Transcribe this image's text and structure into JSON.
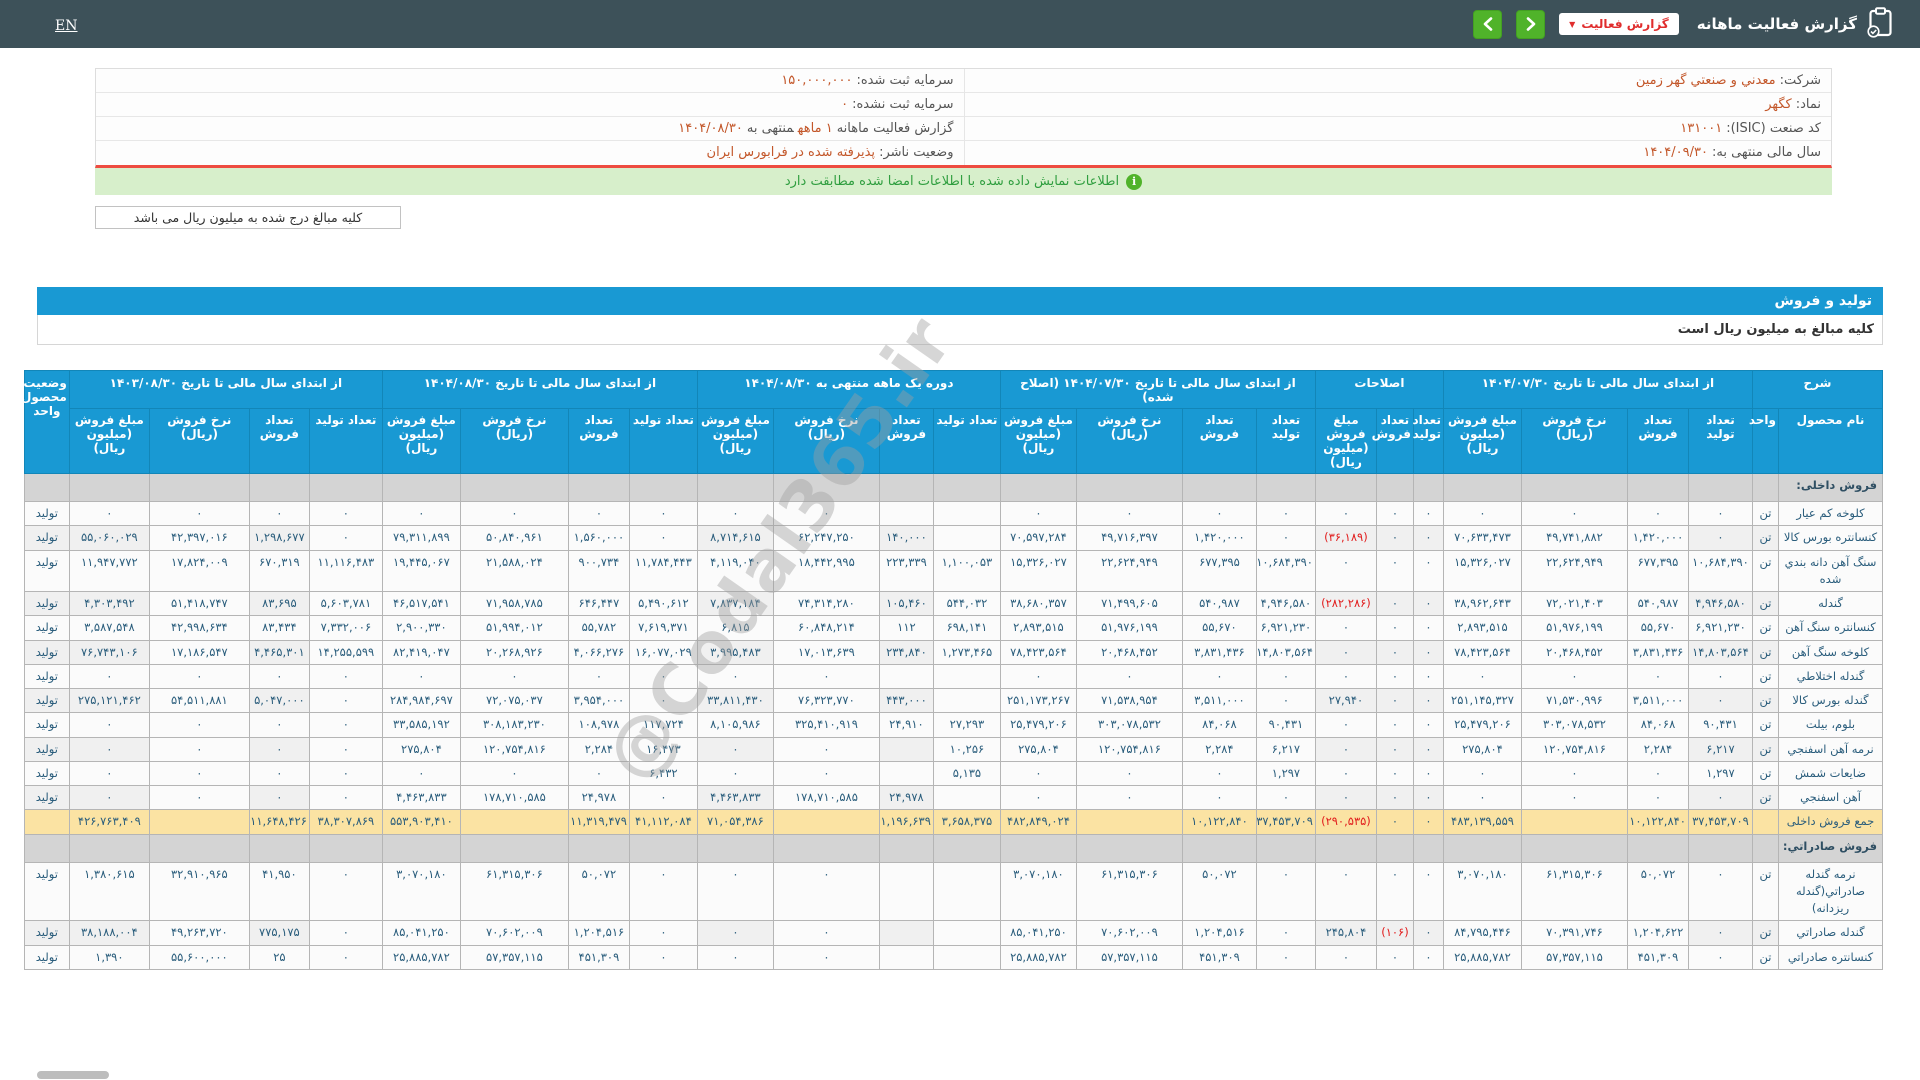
{
  "topbar": {
    "en_label": "EN",
    "title": "گزارش فعالیت ماهانه",
    "report_button": "گزارش فعالیت",
    "accent_green": "#50b32a",
    "accent_red": "#e02d2d",
    "bar_color": "#3d5159"
  },
  "company_info": {
    "right_rows": [
      {
        "label": "شرکت:",
        "value": "معدني و صنعتي گهر زمين"
      },
      {
        "label": "نماد:",
        "value": "کگهر"
      },
      {
        "label": "کد صنعت (ISIC):",
        "value": "۱۳۱۰۰۱"
      },
      {
        "label": "سال مالی منتهی به:",
        "value": "۱۴۰۴/۰۹/۳۰"
      }
    ],
    "left_rows": [
      {
        "label": "سرمایه ثبت شده:",
        "value": "۱۵۰,۰۰۰,۰۰۰"
      },
      {
        "label": "سرمایه ثبت نشده:",
        "value": "۰"
      },
      {
        "label": "گزارش فعالیت ماهانه",
        "value": "۱ ماهه",
        "suffix": "منتهی به",
        "value2": "۱۴۰۴/۰۸/۳۰"
      },
      {
        "label": "وضعیت ناشر:",
        "value": "پذیرفته شده در فرابورس ایران"
      }
    ]
  },
  "signed_notice": "اطلاعات نمایش داده شده با اطلاعات امضا شده مطابقت دارد",
  "unit_note": "کلیه مبالغ درج شده به میلیون ریال می باشد",
  "section": {
    "title": "تولید و فروش",
    "subtitle": "کلیه مبالغ به میلیون ریال است",
    "bar_color": "#1999d3"
  },
  "table": {
    "groups": [
      {
        "label": "شرح",
        "cols": [
          "نام محصول",
          "واحد"
        ]
      },
      {
        "label": "از ابتدای سال مالی تا تاریخ ۱۴۰۴/۰۷/۳۰",
        "cols": [
          "تعداد تولید",
          "تعداد فروش",
          "نرخ فروش (ریال)",
          "مبلغ فروش (میلیون ریال)"
        ]
      },
      {
        "label": "اصلاحات",
        "cols": [
          "تعداد تولید",
          "تعداد فروش",
          "مبلغ فروش (میلیون ریال)"
        ]
      },
      {
        "label": "از ابتدای سال مالی تا تاریخ ۱۴۰۴/۰۷/۳۰ (اصلاح شده)",
        "cols": [
          "تعداد تولید",
          "تعداد فروش",
          "نرخ فروش (ریال)",
          "مبلغ فروش (میلیون ریال)"
        ]
      },
      {
        "label": "دوره یک ماهه منتهی به ۱۴۰۴/۰۸/۳۰",
        "cols": [
          "تعداد تولید",
          "تعداد فروش",
          "نرخ فروش (ریال)",
          "مبلغ فروش (میلیون ریال)"
        ]
      },
      {
        "label": "از ابتدای سال مالی تا تاریخ ۱۴۰۴/۰۸/۳۰",
        "cols": [
          "تعداد تولید",
          "تعداد فروش",
          "نرخ فروش (ریال)",
          "مبلغ فروش (میلیون ریال)"
        ]
      },
      {
        "label": "از ابتدای سال مالی تا تاریخ ۱۴۰۳/۰۸/۳۰",
        "cols": [
          "تعداد تولید",
          "تعداد فروش",
          "نرخ فروش (ریال)",
          "مبلغ فروش (میلیون ریال)"
        ]
      },
      {
        "label": "وضعیت محصول- واحد",
        "cols": []
      }
    ],
    "rows": [
      {
        "type": "section",
        "name": "فروش داخلی:"
      },
      {
        "type": "data",
        "name": "کلوخه کم عیار",
        "unit": "تن",
        "status": "تولید",
        "cells": [
          "۰",
          "۰",
          "۰",
          "۰",
          "۰",
          "۰",
          "۰",
          "۰",
          "۰",
          "۰",
          "۰",
          "",
          "",
          "۰",
          "۰",
          "۰",
          "۰",
          "۰",
          "۰",
          "۰",
          "۰",
          "۰",
          "۰"
        ]
      },
      {
        "type": "data",
        "name": "کنسانتره بورس کالا",
        "unit": "تن",
        "status": "تولید",
        "cells": [
          "۰",
          "۱,۴۲۰,۰۰۰",
          "۴۹,۷۴۱,۸۸۲",
          "۷۰,۶۳۳,۴۷۳",
          "۰",
          "۰",
          "(۳۶,۱۸۹)",
          "۰",
          "۱,۴۲۰,۰۰۰",
          "۴۹,۷۱۶,۳۹۷",
          "۷۰,۵۹۷,۲۸۴",
          "",
          "۱۴۰,۰۰۰",
          "۶۲,۲۴۷,۲۵۰",
          "۸,۷۱۴,۶۱۵",
          "۰",
          "۱,۵۶۰,۰۰۰",
          "۵۰,۸۴۰,۹۶۱",
          "۷۹,۳۱۱,۸۹۹",
          "۰",
          "۱,۲۹۸,۶۷۷",
          "۴۲,۳۹۷,۰۱۶",
          "۵۵,۰۶۰,۰۲۹"
        ]
      },
      {
        "type": "data",
        "name": "سنگ آهن دانه بندي شده",
        "unit": "تن",
        "status": "تولید",
        "cells": [
          "۱۰,۶۸۴,۳۹۰",
          "۶۷۷,۳۹۵",
          "۲۲,۶۲۴,۹۴۹",
          "۱۵,۳۲۶,۰۲۷",
          "۰",
          "۰",
          "۰",
          "۱۰,۶۸۴,۳۹۰",
          "۶۷۷,۳۹۵",
          "۲۲,۶۲۴,۹۴۹",
          "۱۵,۳۲۶,۰۲۷",
          "۱,۱۰۰,۰۵۳",
          "۲۲۳,۳۳۹",
          "۱۸,۴۴۲,۹۹۵",
          "۴,۱۱۹,۰۴۰",
          "۱۱,۷۸۴,۴۴۳",
          "۹۰۰,۷۳۴",
          "۲۱,۵۸۸,۰۲۴",
          "۱۹,۴۴۵,۰۶۷",
          "۱۱,۱۱۶,۴۸۳",
          "۶۷۰,۳۱۹",
          "۱۷,۸۲۴,۰۰۹",
          "۱۱,۹۴۷,۷۷۲"
        ]
      },
      {
        "type": "data",
        "name": "گندله",
        "unit": "تن",
        "status": "تولید",
        "cells": [
          "۴,۹۴۶,۵۸۰",
          "۵۴۰,۹۸۷",
          "۷۲,۰۲۱,۴۰۳",
          "۳۸,۹۶۲,۶۴۳",
          "۰",
          "۰",
          "(۲۸۲,۲۸۶)",
          "۴,۹۴۶,۵۸۰",
          "۵۴۰,۹۸۷",
          "۷۱,۴۹۹,۶۰۵",
          "۳۸,۶۸۰,۳۵۷",
          "۵۴۴,۰۳۲",
          "۱۰۵,۴۶۰",
          "۷۴,۳۱۴,۲۸۰",
          "۷,۸۳۷,۱۸۴",
          "۵,۴۹۰,۶۱۲",
          "۶۴۶,۴۴۷",
          "۷۱,۹۵۸,۷۸۵",
          "۴۶,۵۱۷,۵۴۱",
          "۵,۶۰۳,۷۸۱",
          "۸۳,۶۹۵",
          "۵۱,۴۱۸,۷۴۷",
          "۴,۳۰۳,۴۹۲"
        ]
      },
      {
        "type": "data",
        "name": "کنسانتره سنگ آهن",
        "unit": "تن",
        "status": "تولید",
        "cells": [
          "۶,۹۲۱,۲۳۰",
          "۵۵,۶۷۰",
          "۵۱,۹۷۶,۱۹۹",
          "۲,۸۹۳,۵۱۵",
          "۰",
          "۰",
          "۰",
          "۶,۹۲۱,۲۳۰",
          "۵۵,۶۷۰",
          "۵۱,۹۷۶,۱۹۹",
          "۲,۸۹۳,۵۱۵",
          "۶۹۸,۱۴۱",
          "۱۱۲",
          "۶۰,۸۴۸,۲۱۴",
          "۶,۸۱۵",
          "۷,۶۱۹,۳۷۱",
          "۵۵,۷۸۲",
          "۵۱,۹۹۴,۰۱۲",
          "۲,۹۰۰,۳۳۰",
          "۷,۳۳۲,۰۰۶",
          "۸۳,۴۳۴",
          "۴۲,۹۹۸,۶۳۴",
          "۳,۵۸۷,۵۴۸"
        ]
      },
      {
        "type": "data",
        "name": "کلوخه سنگ آهن",
        "unit": "تن",
        "status": "تولید",
        "cells": [
          "۱۴,۸۰۳,۵۶۴",
          "۳,۸۳۱,۴۳۶",
          "۲۰,۴۶۸,۴۵۲",
          "۷۸,۴۲۳,۵۶۴",
          "۰",
          "۰",
          "۰",
          "۱۴,۸۰۳,۵۶۴",
          "۳,۸۳۱,۴۳۶",
          "۲۰,۴۶۸,۴۵۲",
          "۷۸,۴۲۳,۵۶۴",
          "۱,۲۷۳,۴۶۵",
          "۲۳۴,۸۴۰",
          "۱۷,۰۱۳,۶۳۹",
          "۳,۹۹۵,۴۸۳",
          "۱۶,۰۷۷,۰۲۹",
          "۴,۰۶۶,۲۷۶",
          "۲۰,۲۶۸,۹۲۶",
          "۸۲,۴۱۹,۰۴۷",
          "۱۴,۲۵۵,۵۹۹",
          "۴,۴۶۵,۳۰۱",
          "۱۷,۱۸۶,۵۴۷",
          "۷۶,۷۴۳,۱۰۶"
        ]
      },
      {
        "type": "data",
        "name": "گندله اختلاطي",
        "unit": "تن",
        "status": "تولید",
        "cells": [
          "۰",
          "۰",
          "۰",
          "۰",
          "۰",
          "۰",
          "۰",
          "۰",
          "۰",
          "۰",
          "۰",
          "",
          "",
          "۰",
          "۰",
          "۰",
          "۰",
          "۰",
          "۰",
          "۰",
          "۰",
          "۰",
          "۰"
        ]
      },
      {
        "type": "data",
        "name": "گندله بورس کالا",
        "unit": "تن",
        "status": "تولید",
        "cells": [
          "۰",
          "۳,۵۱۱,۰۰۰",
          "۷۱,۵۳۰,۹۹۶",
          "۲۵۱,۱۴۵,۳۲۷",
          "۰",
          "۰",
          "۲۷,۹۴۰",
          "۰",
          "۳,۵۱۱,۰۰۰",
          "۷۱,۵۳۸,۹۵۴",
          "۲۵۱,۱۷۳,۲۶۷",
          "",
          "۴۴۳,۰۰۰",
          "۷۶,۳۲۳,۷۷۰",
          "۳۳,۸۱۱,۴۳۰",
          "۰",
          "۳,۹۵۴,۰۰۰",
          "۷۲,۰۷۵,۰۳۷",
          "۲۸۴,۹۸۴,۶۹۷",
          "۰",
          "۵,۰۴۷,۰۰۰",
          "۵۴,۵۱۱,۸۸۱",
          "۲۷۵,۱۲۱,۴۶۲"
        ]
      },
      {
        "type": "data",
        "name": "بلوم، بیلت",
        "unit": "تن",
        "status": "تولید",
        "cells": [
          "۹۰,۴۳۱",
          "۸۴,۰۶۸",
          "۳۰۳,۰۷۸,۵۳۲",
          "۲۵,۴۷۹,۲۰۶",
          "۰",
          "۰",
          "۰",
          "۹۰,۴۳۱",
          "۸۴,۰۶۸",
          "۳۰۳,۰۷۸,۵۳۲",
          "۲۵,۴۷۹,۲۰۶",
          "۲۷,۲۹۳",
          "۲۴,۹۱۰",
          "۳۲۵,۴۱۰,۹۱۹",
          "۸,۱۰۵,۹۸۶",
          "۱۱۷,۷۲۴",
          "۱۰۸,۹۷۸",
          "۳۰۸,۱۸۳,۲۳۰",
          "۳۳,۵۸۵,۱۹۲",
          "۰",
          "۰",
          "۰",
          "۰"
        ]
      },
      {
        "type": "data",
        "name": "نرمه آهن اسفنجي",
        "unit": "تن",
        "status": "تولید",
        "cells": [
          "۶,۲۱۷",
          "۲,۲۸۴",
          "۱۲۰,۷۵۴,۸۱۶",
          "۲۷۵,۸۰۴",
          "۰",
          "۰",
          "۰",
          "۶,۲۱۷",
          "۲,۲۸۴",
          "۱۲۰,۷۵۴,۸۱۶",
          "۲۷۵,۸۰۴",
          "۱۰,۲۵۶",
          "",
          "۰",
          "۰",
          "۱۶,۴۷۳",
          "۲,۲۸۴",
          "۱۲۰,۷۵۴,۸۱۶",
          "۲۷۵,۸۰۴",
          "۰",
          "۰",
          "۰",
          "۰"
        ]
      },
      {
        "type": "data",
        "name": "ضایعات شمش",
        "unit": "تن",
        "status": "تولید",
        "cells": [
          "۱,۲۹۷",
          "۰",
          "۰",
          "۰",
          "۰",
          "۰",
          "۰",
          "۱,۲۹۷",
          "۰",
          "۰",
          "۰",
          "۵,۱۳۵",
          "",
          "۰",
          "۰",
          "۶,۴۳۲",
          "۰",
          "۰",
          "۰",
          "۰",
          "۰",
          "۰",
          "۰"
        ]
      },
      {
        "type": "data",
        "name": "آهن اسفنجي",
        "unit": "تن",
        "status": "تولید",
        "cells": [
          "۰",
          "۰",
          "۰",
          "۰",
          "۰",
          "۰",
          "۰",
          "۰",
          "۰",
          "۰",
          "۰",
          "",
          "۲۴,۹۷۸",
          "۱۷۸,۷۱۰,۵۸۵",
          "۴,۴۶۳,۸۳۳",
          "۰",
          "۲۴,۹۷۸",
          "۱۷۸,۷۱۰,۵۸۵",
          "۴,۴۶۳,۸۳۳",
          "۰",
          "۰",
          "۰",
          "۰"
        ]
      },
      {
        "type": "total",
        "name": "جمع فروش داخلی",
        "unit": "",
        "status": "",
        "cells": [
          "۳۷,۴۵۳,۷۰۹",
          "۱۰,۱۲۲,۸۴۰",
          "",
          "۴۸۳,۱۳۹,۵۵۹",
          "۰",
          "۰",
          "(۲۹۰,۵۳۵)",
          "۳۷,۴۵۳,۷۰۹",
          "۱۰,۱۲۲,۸۴۰",
          "",
          "۴۸۲,۸۴۹,۰۲۴",
          "۳,۶۵۸,۳۷۵",
          "۱,۱۹۶,۶۳۹",
          "",
          "۷۱,۰۵۴,۳۸۶",
          "۴۱,۱۱۲,۰۸۴",
          "۱۱,۳۱۹,۴۷۹",
          "",
          "۵۵۳,۹۰۳,۴۱۰",
          "۳۸,۳۰۷,۸۶۹",
          "۱۱,۶۴۸,۴۲۶",
          "",
          "۴۲۶,۷۶۳,۴۰۹"
        ]
      },
      {
        "type": "section",
        "name": "فروش صادراتي:"
      },
      {
        "type": "data",
        "name": "نرمه گندله صادراتي(گندله ریزدانه)",
        "unit": "تن",
        "status": "تولید",
        "cells": [
          "۰",
          "۵۰,۰۷۲",
          "۶۱,۳۱۵,۳۰۶",
          "۳,۰۷۰,۱۸۰",
          "۰",
          "۰",
          "۰",
          "۰",
          "۵۰,۰۷۲",
          "۶۱,۳۱۵,۳۰۶",
          "۳,۰۷۰,۱۸۰",
          "",
          "",
          "۰",
          "۰",
          "۰",
          "۵۰,۰۷۲",
          "۶۱,۳۱۵,۳۰۶",
          "۳,۰۷۰,۱۸۰",
          "۰",
          "۴۱,۹۵۰",
          "۳۲,۹۱۰,۹۶۵",
          "۱,۳۸۰,۶۱۵"
        ]
      },
      {
        "type": "data",
        "name": "گندله صادراتي",
        "unit": "تن",
        "status": "تولید",
        "cells": [
          "۰",
          "۱,۲۰۴,۶۲۲",
          "۷۰,۳۹۱,۷۴۶",
          "۸۴,۷۹۵,۴۴۶",
          "۰",
          "(۱۰۶)",
          "۲۴۵,۸۰۴",
          "۰",
          "۱,۲۰۴,۵۱۶",
          "۷۰,۶۰۲,۰۰۹",
          "۸۵,۰۴۱,۲۵۰",
          "",
          "",
          "۰",
          "۰",
          "۰",
          "۱,۲۰۴,۵۱۶",
          "۷۰,۶۰۲,۰۰۹",
          "۸۵,۰۴۱,۲۵۰",
          "۰",
          "۷۷۵,۱۷۵",
          "۴۹,۲۶۳,۷۲۰",
          "۳۸,۱۸۸,۰۰۴"
        ]
      },
      {
        "type": "data",
        "name": "کنسانتره صادراتي",
        "unit": "تن",
        "status": "تولید",
        "cells": [
          "۰",
          "۴۵۱,۳۰۹",
          "۵۷,۳۵۷,۱۱۵",
          "۲۵,۸۸۵,۷۸۲",
          "۰",
          "۰",
          "۰",
          "۰",
          "۴۵۱,۳۰۹",
          "۵۷,۳۵۷,۱۱۵",
          "۲۵,۸۸۵,۷۸۲",
          "",
          "",
          "۰",
          "۰",
          "۰",
          "۴۵۱,۳۰۹",
          "۵۷,۳۵۷,۱۱۵",
          "۲۵,۸۸۵,۷۸۲",
          "۰",
          "۲۵",
          "۵۵,۶۰۰,۰۰۰",
          "۱,۳۹۰"
        ]
      }
    ]
  },
  "watermark": "@Codal365.ir"
}
